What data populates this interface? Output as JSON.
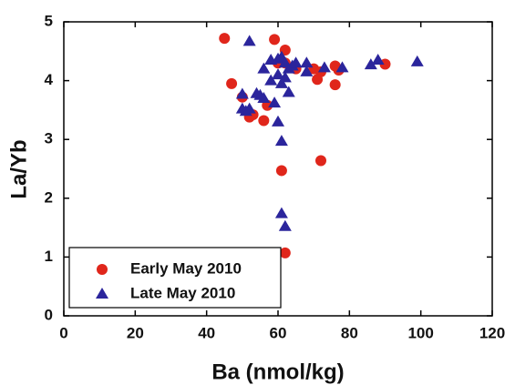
{
  "chart_data": {
    "type": "scatter",
    "x_label": "Ba (nmol/kg)",
    "y_label": "La/Yb",
    "xlim": [
      0,
      120
    ],
    "ylim": [
      0,
      5
    ],
    "xticks": [
      0,
      20,
      40,
      60,
      80,
      100,
      120
    ],
    "yticks": [
      0,
      1,
      2,
      3,
      4,
      5
    ],
    "legend": "lower left",
    "series": [
      {
        "name": "Early May 2010",
        "color": "#e0261b",
        "marker": "circle",
        "x": [
          45,
          59,
          62,
          62,
          47,
          50,
          57,
          53,
          56,
          52,
          61,
          72,
          62,
          70,
          72,
          71,
          76,
          77,
          76,
          90,
          60,
          65
        ],
        "values": [
          4.72,
          4.7,
          4.52,
          4.3,
          3.95,
          3.72,
          3.58,
          3.42,
          3.32,
          3.38,
          2.47,
          2.64,
          1.07,
          4.2,
          4.15,
          4.02,
          4.25,
          4.18,
          3.93,
          4.28,
          4.3,
          4.2
        ]
      },
      {
        "name": "Late May 2010",
        "color": "#2b259c",
        "marker": "triangle",
        "x": [
          52,
          58,
          60,
          61,
          62,
          63,
          64,
          60,
          62,
          61,
          63,
          56,
          58,
          59,
          55,
          54,
          50,
          50,
          51,
          52,
          60,
          61,
          61,
          62,
          68,
          68,
          73,
          78,
          86,
          88,
          99,
          65,
          56
        ],
        "values": [
          4.67,
          4.35,
          4.37,
          4.4,
          4.3,
          4.2,
          4.25,
          4.1,
          4.05,
          3.95,
          3.8,
          4.2,
          4.0,
          3.62,
          3.75,
          3.78,
          3.77,
          3.52,
          3.48,
          3.52,
          3.3,
          2.97,
          1.74,
          1.52,
          4.3,
          4.15,
          4.22,
          4.22,
          4.27,
          4.35,
          4.32,
          4.3,
          3.7
        ]
      }
    ]
  }
}
